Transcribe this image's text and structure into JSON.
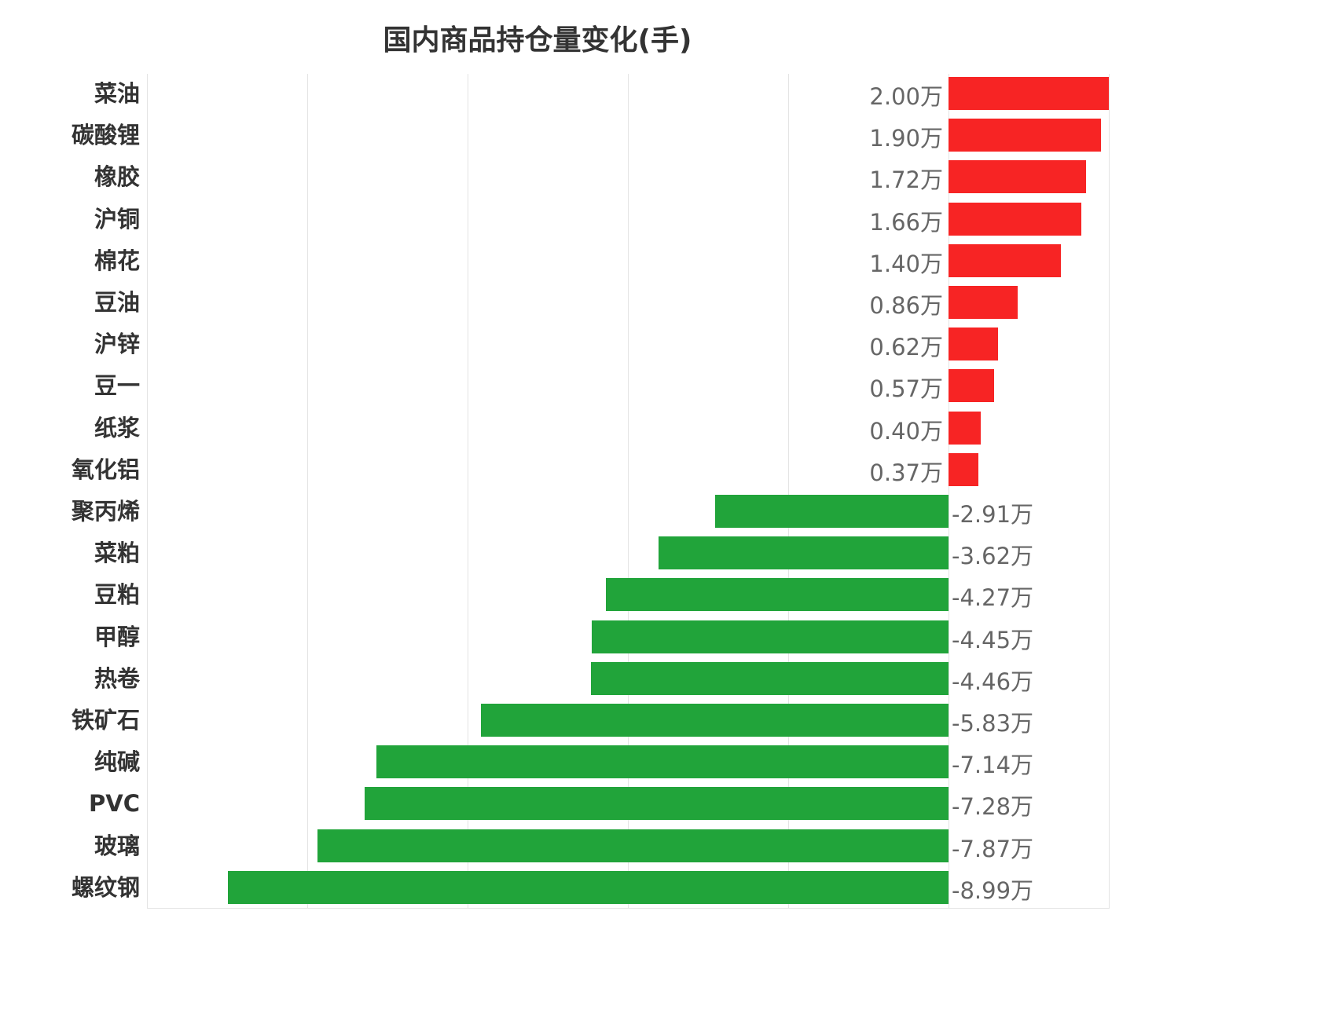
{
  "title": "国内商品持仓量变化(手)",
  "colors": {
    "positive": "#f72424",
    "negative": "#21a43a",
    "grid": "#e4e4e4",
    "label": "#333333",
    "value": "#666666"
  },
  "chart_data": {
    "type": "bar",
    "orientation": "horizontal",
    "title": "国内商品持仓量变化(手)",
    "xlabel": "",
    "ylabel": "",
    "unit": "万",
    "xlim": [
      -10,
      2
    ],
    "grid": true,
    "gridlines_x": [
      -10,
      -8,
      -6,
      -4,
      -2,
      0,
      2
    ],
    "legend": null,
    "categories": [
      "菜油",
      "碳酸锂",
      "橡胶",
      "沪铜",
      "棉花",
      "豆油",
      "沪锌",
      "豆一",
      "纸浆",
      "氧化铝",
      "聚丙烯",
      "菜粕",
      "豆粕",
      "甲醇",
      "热卷",
      "铁矿石",
      "纯碱",
      "PVC",
      "玻璃",
      "螺纹钢"
    ],
    "values": [
      2.0,
      1.9,
      1.72,
      1.66,
      1.4,
      0.86,
      0.62,
      0.57,
      0.4,
      0.37,
      -2.91,
      -3.62,
      -4.27,
      -4.45,
      -4.46,
      -5.83,
      -7.14,
      -7.28,
      -7.87,
      -8.99
    ],
    "labels": [
      "2.00万",
      "1.90万",
      "1.72万",
      "1.66万",
      "1.40万",
      "0.86万",
      "0.62万",
      "0.57万",
      "0.40万",
      "0.37万",
      "-2.91万",
      "-3.62万",
      "-4.27万",
      "-4.45万",
      "-4.46万",
      "-5.83万",
      "-7.14万",
      "-7.28万",
      "-7.87万",
      "-8.99万"
    ]
  }
}
